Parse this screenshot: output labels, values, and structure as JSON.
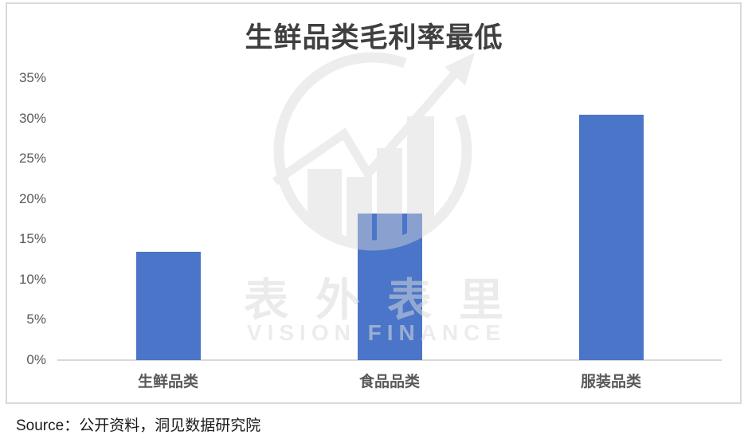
{
  "title": "生鲜品类毛利率最低",
  "source": "Source：公开资料，洞见数据研究院",
  "watermark": {
    "cn": "表外表里",
    "en": "VISION FINANCE",
    "icon": "circle-rising-arrow-chart-logo"
  },
  "colors": {
    "bar": "#4A75C8",
    "title_text": "#404040",
    "axis_label": "#595959",
    "axis_line": "#D9D9D9",
    "frame_border": "#D9D9D9",
    "source_text": "#1A1A1A",
    "watermark": "#D8D8D8"
  },
  "chart_data": {
    "type": "bar",
    "title": "生鲜品类毛利率最低",
    "categories": [
      "生鲜品类",
      "食品品类",
      "服装品类"
    ],
    "values": [
      13.4,
      18.2,
      30.5
    ],
    "value_unit": "%",
    "xlabel": "",
    "ylabel": "",
    "ylim": [
      0,
      35
    ],
    "ytick_step": 5,
    "ytick_labels": [
      "0%",
      "5%",
      "10%",
      "15%",
      "20%",
      "25%",
      "30%",
      "35%"
    ],
    "grid": false,
    "legend": null
  }
}
